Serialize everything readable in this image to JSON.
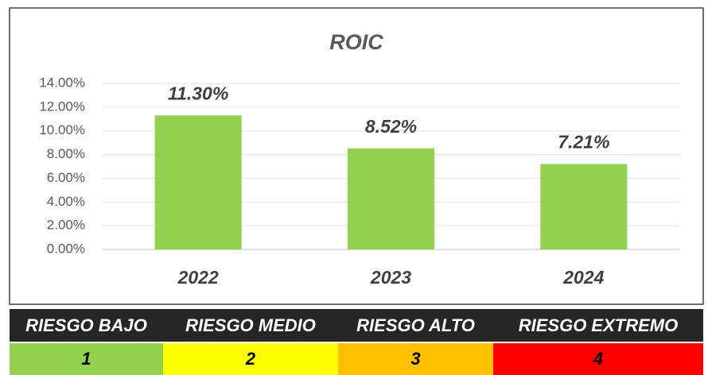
{
  "chart_data": {
    "type": "bar",
    "title": "ROIC",
    "categories": [
      "2022",
      "2023",
      "2024"
    ],
    "values": [
      11.3,
      8.52,
      7.21
    ],
    "value_labels": [
      "11.30%",
      "8.52%",
      "7.21%"
    ],
    "color": "#92d050",
    "ylim": [
      0,
      14
    ],
    "yticks": [
      {
        "value": 0,
        "label": "0.00%"
      },
      {
        "value": 2,
        "label": "2.00%"
      },
      {
        "value": 4,
        "label": "4.00%"
      },
      {
        "value": 6,
        "label": "6.00%"
      },
      {
        "value": 8,
        "label": "8.00%"
      },
      {
        "value": 10,
        "label": "10.00%"
      },
      {
        "value": 12,
        "label": "12.00%"
      },
      {
        "value": 14,
        "label": "14.00%"
      }
    ],
    "grid": true
  },
  "risk_scale": {
    "labels": [
      "RIESGO BAJO",
      "RIESGO MEDIO",
      "RIESGO ALTO",
      "RIESGO EXTREMO"
    ],
    "levels": [
      "1",
      "2",
      "3",
      "4"
    ],
    "colors": [
      "#92d050",
      "#ffff00",
      "#ffc000",
      "#ff0000"
    ]
  }
}
